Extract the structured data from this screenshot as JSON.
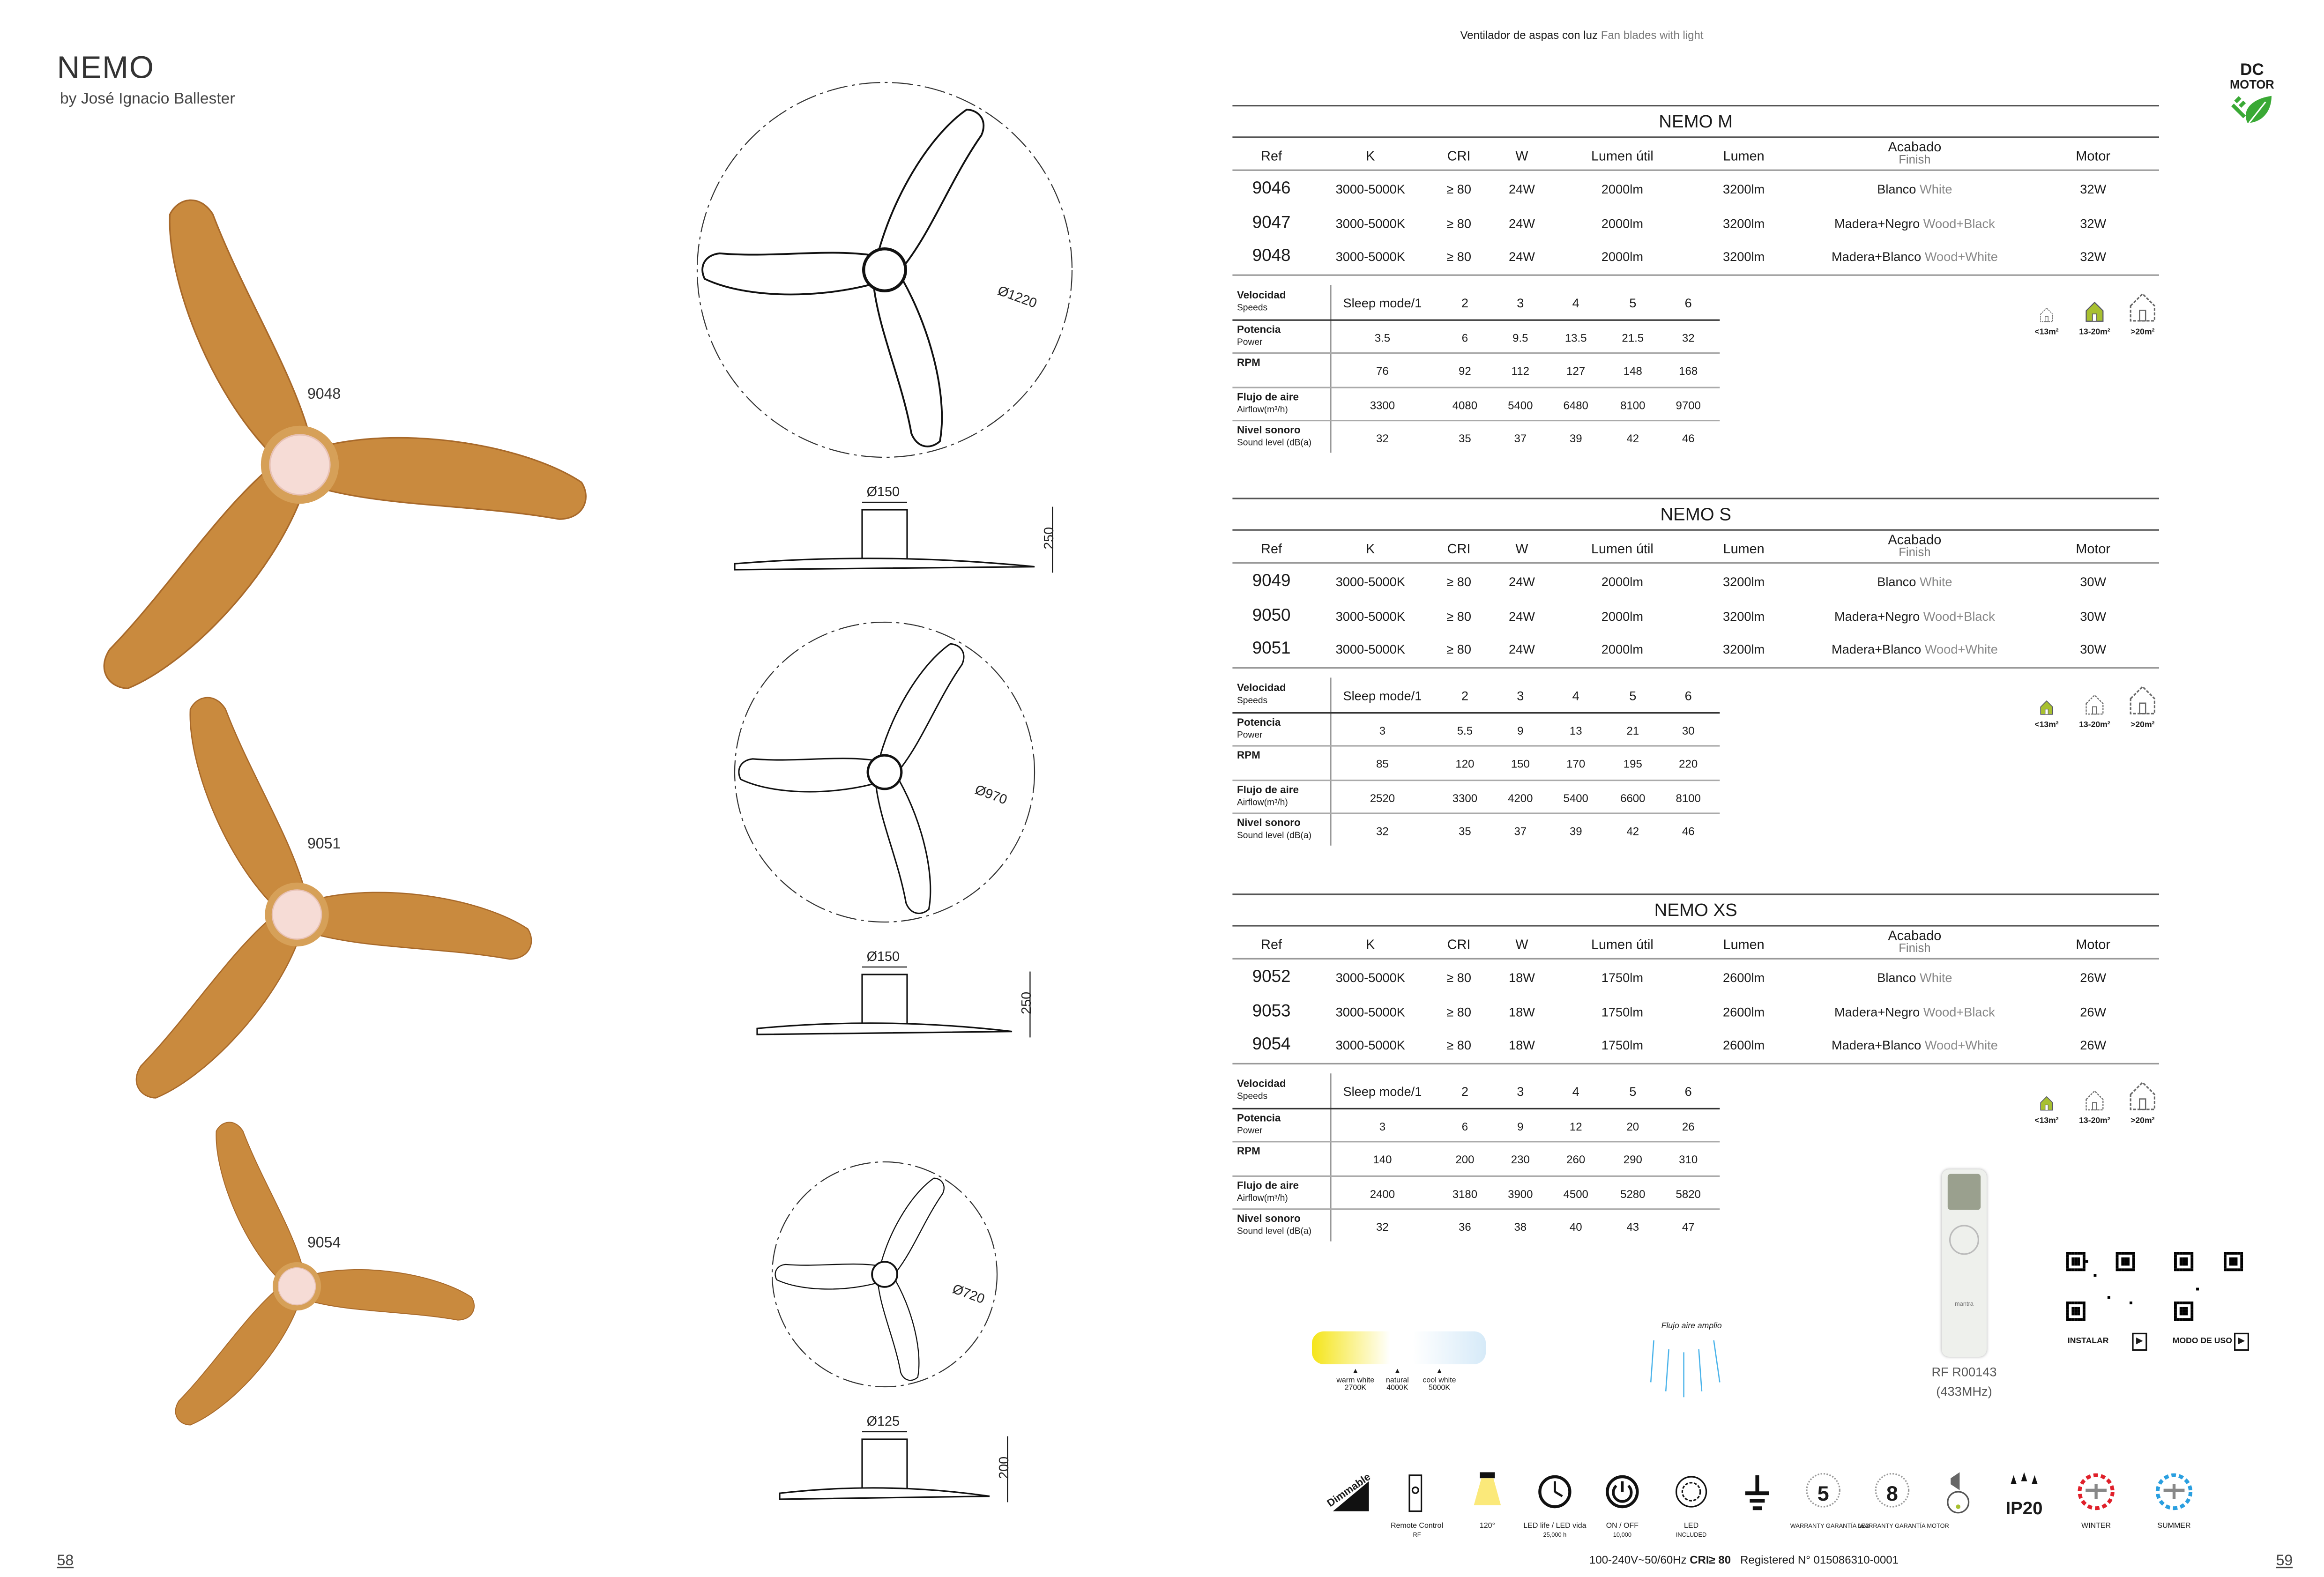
{
  "header": {
    "category_es": "Ventilador de aspas con luz",
    "category_en": "Fan blades with light"
  },
  "brand": {
    "name": "NEMO",
    "designer": "by José Ignacio Ballester"
  },
  "badge": {
    "line1": "DC",
    "line2": "MOTOR",
    "icon": "eco-plug-leaf-icon",
    "color": "#3aa935"
  },
  "fan_labels": [
    "9048",
    "9051",
    "9054"
  ],
  "wood_color": "#c98a3e",
  "drawings": [
    {
      "diameter": "Ø1220",
      "hub": "Ø150",
      "height": "250"
    },
    {
      "diameter": "Ø970",
      "hub": "Ø150",
      "height": "250"
    },
    {
      "diameter": "Ø720",
      "hub": "Ø125",
      "height": "200"
    }
  ],
  "columns": {
    "ref": "Ref",
    "k": "K",
    "cri": "CRI",
    "w": "W",
    "lumen_util": "Lumen útil",
    "lumen": "Lumen",
    "finish_es": "Acabado",
    "finish_en": "Finish",
    "motor": "Motor"
  },
  "speed_labels": [
    {
      "es": "Velocidad",
      "en": "Speeds"
    },
    {
      "es": "Potencia",
      "en": "Power"
    },
    {
      "es": "RPM",
      "en": ""
    },
    {
      "es": "Flujo de aire",
      "en": "Airflow(m³/h)"
    },
    {
      "es": "Nivel sonoro",
      "en": "Sound level (dB(a)"
    }
  ],
  "room_sizes": [
    "<13m²",
    "13-20m²",
    ">20m²"
  ],
  "highlight_color": "#a8c030",
  "products": [
    {
      "title": "NEMO M",
      "rows": [
        {
          "ref": "9046",
          "k": "3000-5000K",
          "cri": "≥ 80",
          "w": "24W",
          "lumen_util": "2000lm",
          "lumen": "3200lm",
          "finish_es": "Blanco",
          "finish_en": "White",
          "motor": "32W"
        },
        {
          "ref": "9047",
          "k": "3000-5000K",
          "cri": "≥ 80",
          "w": "24W",
          "lumen_util": "2000lm",
          "lumen": "3200lm",
          "finish_es": "Madera+Negro",
          "finish_en": "Wood+Black",
          "motor": "32W"
        },
        {
          "ref": "9048",
          "k": "3000-5000K",
          "cri": "≥ 80",
          "w": "24W",
          "lumen_util": "2000lm",
          "lumen": "3200lm",
          "finish_es": "Madera+Blanco",
          "finish_en": "Wood+White",
          "motor": "32W"
        }
      ],
      "speeds": [
        [
          "Sleep mode/1",
          "2",
          "3",
          "4",
          "5",
          "6"
        ],
        [
          "3.5",
          "6",
          "9.5",
          "13.5",
          "21.5",
          "32"
        ],
        [
          "76",
          "92",
          "112",
          "127",
          "148",
          "168"
        ],
        [
          "3300",
          "4080",
          "5400",
          "6480",
          "8100",
          "9700"
        ],
        [
          "32",
          "35",
          "37",
          "39",
          "42",
          "46"
        ]
      ],
      "room_size_selected": 1
    },
    {
      "title": "NEMO S",
      "rows": [
        {
          "ref": "9049",
          "k": "3000-5000K",
          "cri": "≥ 80",
          "w": "24W",
          "lumen_util": "2000lm",
          "lumen": "3200lm",
          "finish_es": "Blanco",
          "finish_en": "White",
          "motor": "30W"
        },
        {
          "ref": "9050",
          "k": "3000-5000K",
          "cri": "≥ 80",
          "w": "24W",
          "lumen_util": "2000lm",
          "lumen": "3200lm",
          "finish_es": "Madera+Negro",
          "finish_en": "Wood+Black",
          "motor": "30W"
        },
        {
          "ref": "9051",
          "k": "3000-5000K",
          "cri": "≥ 80",
          "w": "24W",
          "lumen_util": "2000lm",
          "lumen": "3200lm",
          "finish_es": "Madera+Blanco",
          "finish_en": "Wood+White",
          "motor": "30W"
        }
      ],
      "speeds": [
        [
          "Sleep mode/1",
          "2",
          "3",
          "4",
          "5",
          "6"
        ],
        [
          "3",
          "5.5",
          "9",
          "13",
          "21",
          "30"
        ],
        [
          "85",
          "120",
          "150",
          "170",
          "195",
          "220"
        ],
        [
          "2520",
          "3300",
          "4200",
          "5400",
          "6600",
          "8100"
        ],
        [
          "32",
          "35",
          "37",
          "39",
          "42",
          "46"
        ]
      ],
      "room_size_selected": 0
    },
    {
      "title": "NEMO XS",
      "rows": [
        {
          "ref": "9052",
          "k": "3000-5000K",
          "cri": "≥ 80",
          "w": "18W",
          "lumen_util": "1750lm",
          "lumen": "2600lm",
          "finish_es": "Blanco",
          "finish_en": "White",
          "motor": "26W"
        },
        {
          "ref": "9053",
          "k": "3000-5000K",
          "cri": "≥ 80",
          "w": "18W",
          "lumen_util": "1750lm",
          "lumen": "2600lm",
          "finish_es": "Madera+Negro",
          "finish_en": "Wood+Black",
          "motor": "26W"
        },
        {
          "ref": "9054",
          "k": "3000-5000K",
          "cri": "≥ 80",
          "w": "18W",
          "lumen_util": "1750lm",
          "lumen": "2600lm",
          "finish_es": "Madera+Blanco",
          "finish_en": "Wood+White",
          "motor": "26W"
        }
      ],
      "speeds": [
        [
          "Sleep mode/1",
          "2",
          "3",
          "4",
          "5",
          "6"
        ],
        [
          "3",
          "6",
          "9",
          "12",
          "20",
          "26"
        ],
        [
          "140",
          "200",
          "230",
          "260",
          "290",
          "310"
        ],
        [
          "2400",
          "3180",
          "3900",
          "4500",
          "5280",
          "5820"
        ],
        [
          "32",
          "36",
          "38",
          "40",
          "43",
          "47"
        ]
      ],
      "room_size_selected": 0
    }
  ],
  "color_temp": {
    "stops": [
      {
        "name": "warm white",
        "k": "2700K"
      },
      {
        "name": "natural",
        "k": "4000K"
      },
      {
        "name": "cool white",
        "k": "5000K"
      }
    ],
    "colors": [
      "#f5e51a",
      "#ffffff",
      "#d6eaf8"
    ]
  },
  "airflow": {
    "label": "Flujo aire amplio",
    "color": "#4ab3ea"
  },
  "remote": {
    "model": "RF R00143",
    "freq": "(433MHz)",
    "brand": "mantra"
  },
  "qr": [
    {
      "label": "INSTALAR"
    },
    {
      "label": "MODO DE USO"
    }
  ],
  "features": [
    {
      "icon": "dimmable-icon",
      "text": "Dimmable"
    },
    {
      "icon": "remote-control-icon",
      "text": "Remote Control",
      "sub": "RF"
    },
    {
      "icon": "beam-angle-icon",
      "text": "120°"
    },
    {
      "icon": "led-life-icon",
      "text": "LED life / LED vida",
      "sub": "25,000 h"
    },
    {
      "icon": "on-off-cycles-icon",
      "text": "ON / OFF",
      "sub": "10,000"
    },
    {
      "icon": "led-included-icon",
      "text": "LED",
      "sub": "INCLUDED"
    },
    {
      "icon": "class-ground-icon",
      "text": ""
    },
    {
      "icon": "warranty-led-icon",
      "text": "5",
      "sub": "WARRANTY GARANTÍA LED"
    },
    {
      "icon": "warranty-motor-icon",
      "text": "8",
      "sub": "WARRANTY GARANTÍA MOTOR"
    },
    {
      "icon": "sleep-mode-icon",
      "text": ""
    },
    {
      "icon": "ip-rating-icon",
      "text": "IP20"
    },
    {
      "icon": "winter-mode-icon",
      "text": "WINTER",
      "color": "#e0202a"
    },
    {
      "icon": "summer-mode-icon",
      "text": "SUMMER",
      "color": "#2a9fe0"
    }
  ],
  "footer": {
    "specs": "100-240V~50/60Hz",
    "cri": "CRI≥ 80",
    "registered": "Registered  N°  015086310-0001"
  },
  "pages": {
    "left": "58",
    "right": "59"
  }
}
